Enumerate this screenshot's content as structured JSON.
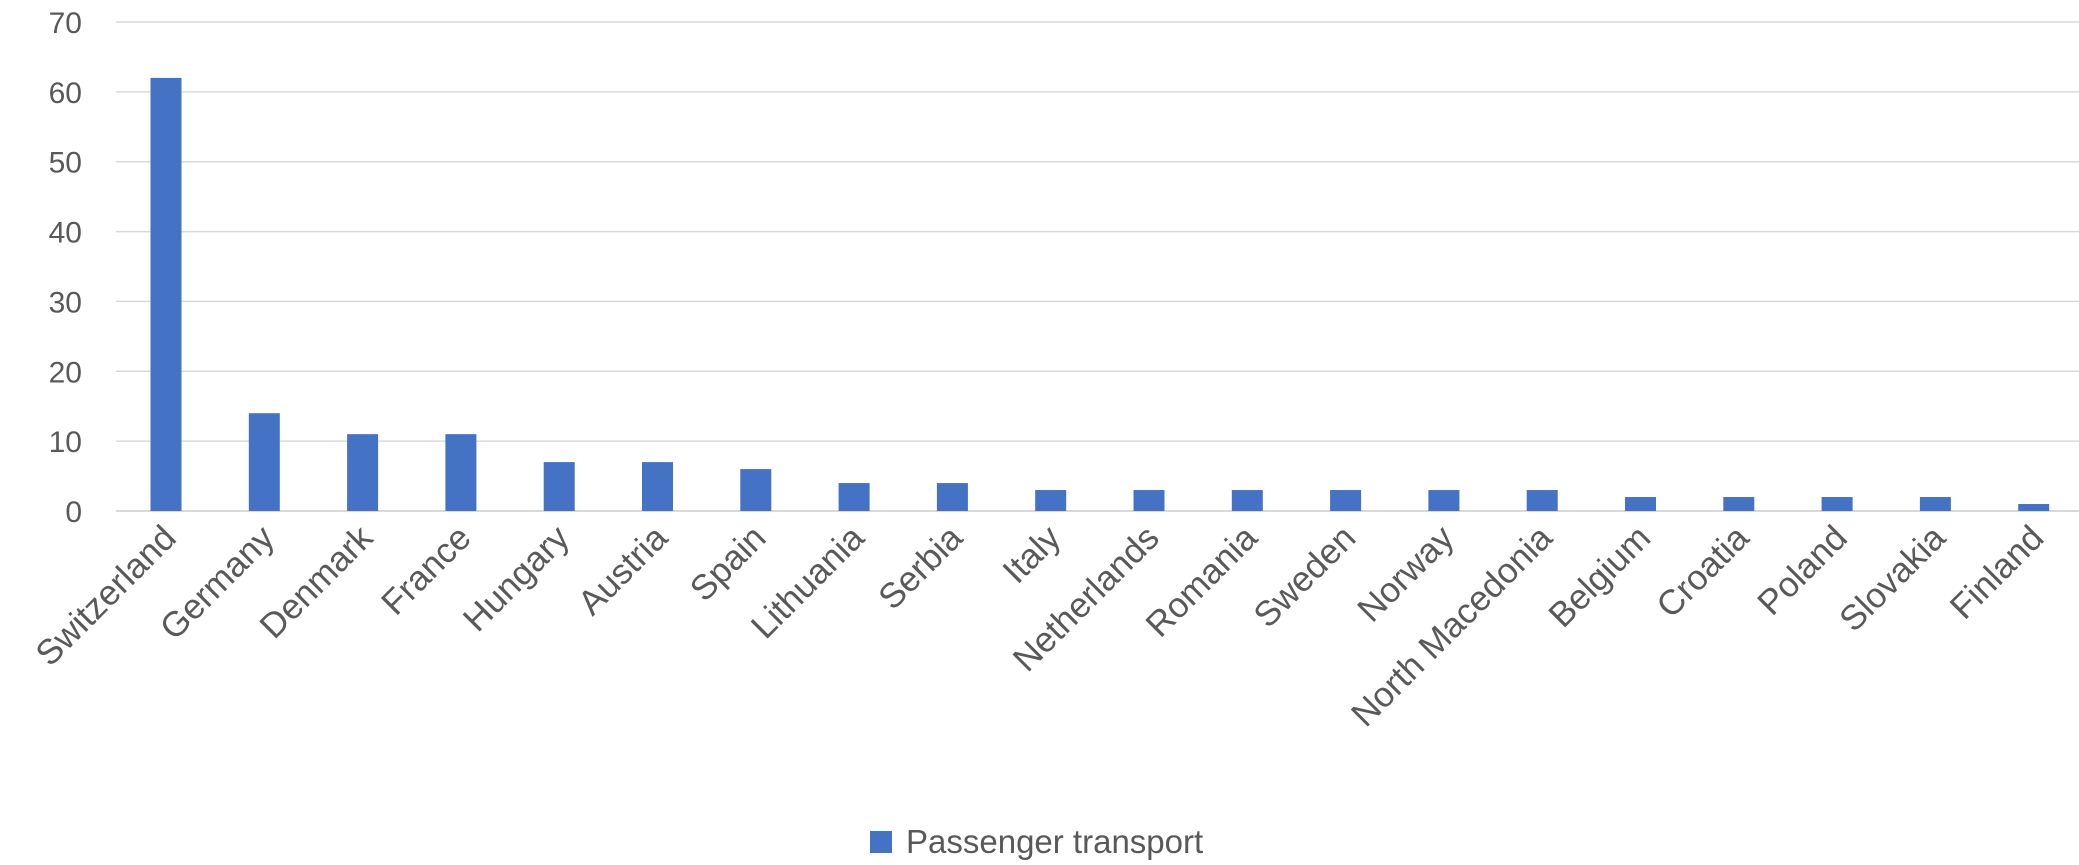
{
  "chart_data": {
    "type": "bar",
    "categories": [
      "Switzerland",
      "Germany",
      "Denmark",
      "France",
      "Hungary",
      "Austria",
      "Spain",
      "Lithuania",
      "Serbia",
      "Italy",
      "Netherlands",
      "Romania",
      "Sweden",
      "Norway",
      "North Macedonia",
      "Belgium",
      "Croatia",
      "Poland",
      "Slovakia",
      "Finland"
    ],
    "series": [
      {
        "name": "Passenger transport",
        "values": [
          62,
          14,
          11,
          11,
          7,
          7,
          6,
          4,
          4,
          3,
          3,
          3,
          3,
          3,
          3,
          2,
          2,
          2,
          2,
          1
        ],
        "color": "#4472C4"
      }
    ],
    "title": "",
    "xlabel": "",
    "ylabel": "",
    "ylim": [
      0,
      70
    ],
    "yticks": [
      0,
      10,
      20,
      30,
      40,
      50,
      60,
      70
    ],
    "grid": true,
    "legend_position": "bottom-center",
    "colors": {
      "grid": "#D9D9D9",
      "axis": "#D9D9D9",
      "text": "#595959"
    }
  }
}
